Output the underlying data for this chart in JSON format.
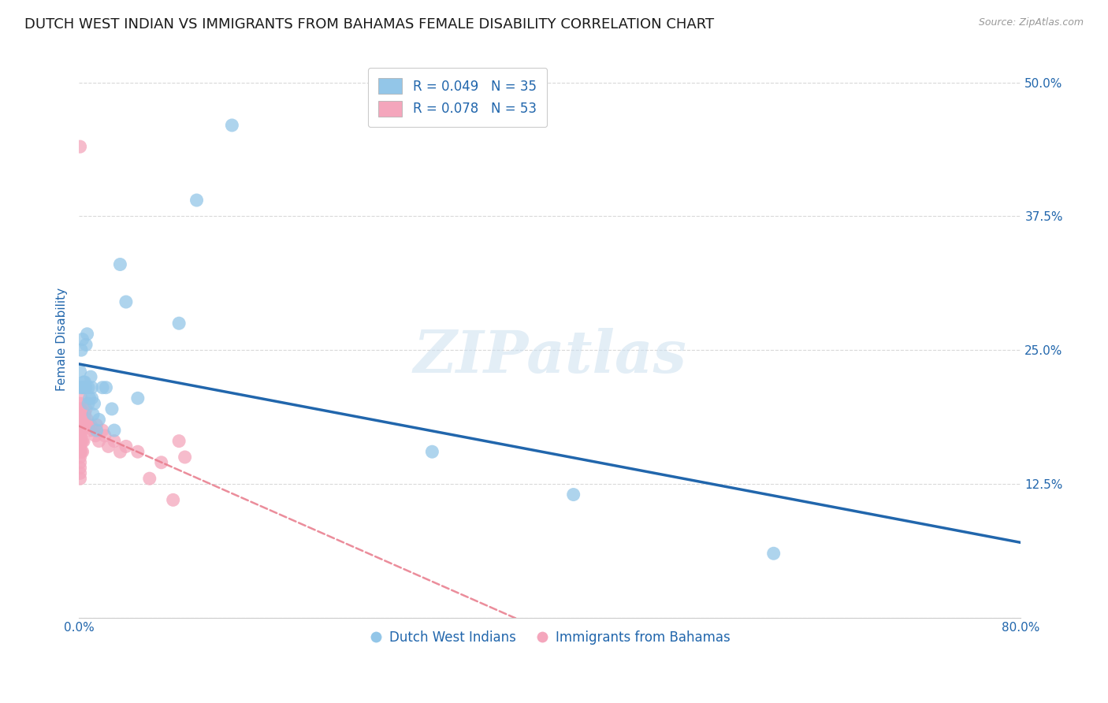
{
  "title": "DUTCH WEST INDIAN VS IMMIGRANTS FROM BAHAMAS FEMALE DISABILITY CORRELATION CHART",
  "source": "Source: ZipAtlas.com",
  "ylabel": "Female Disability",
  "xlim": [
    0.0,
    0.8
  ],
  "ylim": [
    0.0,
    0.52
  ],
  "yticks": [
    0.0,
    0.125,
    0.25,
    0.375,
    0.5
  ],
  "ytick_labels": [
    "",
    "12.5%",
    "25.0%",
    "37.5%",
    "50.0%"
  ],
  "grid_color": "#d0d0d0",
  "background_color": "#ffffff",
  "blue_color": "#93c6e8",
  "blue_line_color": "#2166ac",
  "pink_color": "#f4a6bc",
  "pink_line_color": "#e8798a",
  "legend_text_color": "#2166ac",
  "legend_blue_label": "R = 0.049   N = 35",
  "legend_pink_label": "R = 0.078   N = 53",
  "watermark": "ZIPatlas",
  "title_fontsize": 13,
  "label_fontsize": 11,
  "tick_fontsize": 11,
  "legend_fontsize": 12,
  "blue_scatter_x": [
    0.001,
    0.001,
    0.002,
    0.003,
    0.003,
    0.004,
    0.004,
    0.005,
    0.005,
    0.006,
    0.006,
    0.007,
    0.008,
    0.008,
    0.009,
    0.01,
    0.011,
    0.011,
    0.012,
    0.013,
    0.015,
    0.017,
    0.02,
    0.023,
    0.028,
    0.03,
    0.035,
    0.04,
    0.05,
    0.085,
    0.1,
    0.13,
    0.3,
    0.42,
    0.59
  ],
  "blue_scatter_y": [
    0.215,
    0.23,
    0.25,
    0.26,
    0.215,
    0.215,
    0.22,
    0.22,
    0.215,
    0.255,
    0.215,
    0.265,
    0.2,
    0.215,
    0.205,
    0.225,
    0.215,
    0.205,
    0.19,
    0.2,
    0.175,
    0.185,
    0.215,
    0.215,
    0.195,
    0.175,
    0.33,
    0.295,
    0.205,
    0.275,
    0.39,
    0.46,
    0.155,
    0.115,
    0.06
  ],
  "pink_scatter_x": [
    0.001,
    0.001,
    0.001,
    0.001,
    0.001,
    0.001,
    0.001,
    0.001,
    0.001,
    0.001,
    0.001,
    0.001,
    0.001,
    0.001,
    0.001,
    0.001,
    0.001,
    0.001,
    0.001,
    0.002,
    0.002,
    0.002,
    0.002,
    0.002,
    0.003,
    0.003,
    0.003,
    0.003,
    0.004,
    0.004,
    0.005,
    0.006,
    0.007,
    0.008,
    0.009,
    0.01,
    0.012,
    0.014,
    0.015,
    0.017,
    0.02,
    0.022,
    0.025,
    0.03,
    0.035,
    0.04,
    0.05,
    0.06,
    0.07,
    0.08,
    0.085,
    0.09,
    0.001
  ],
  "pink_scatter_y": [
    0.175,
    0.17,
    0.165,
    0.16,
    0.155,
    0.15,
    0.145,
    0.14,
    0.135,
    0.13,
    0.18,
    0.185,
    0.19,
    0.195,
    0.2,
    0.17,
    0.165,
    0.16,
    0.155,
    0.185,
    0.175,
    0.165,
    0.155,
    0.205,
    0.195,
    0.175,
    0.165,
    0.155,
    0.18,
    0.165,
    0.19,
    0.195,
    0.185,
    0.18,
    0.175,
    0.18,
    0.175,
    0.17,
    0.18,
    0.165,
    0.175,
    0.17,
    0.16,
    0.165,
    0.155,
    0.16,
    0.155,
    0.13,
    0.145,
    0.11,
    0.165,
    0.15,
    0.44
  ]
}
